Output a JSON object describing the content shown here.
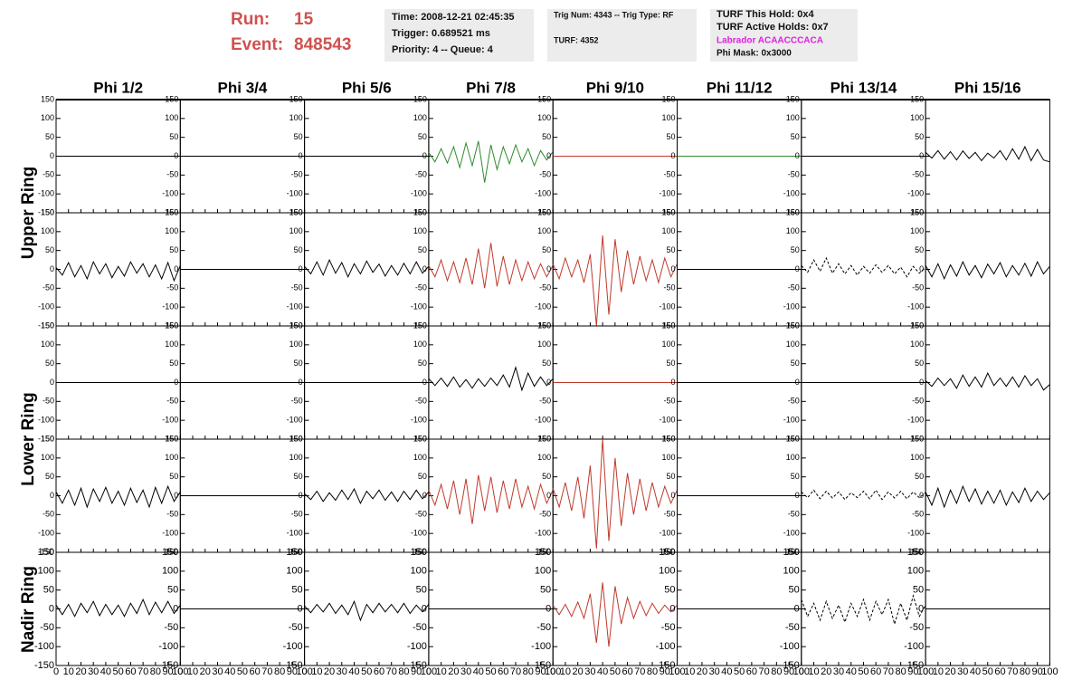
{
  "header": {
    "run_label": "Run:",
    "run": "15",
    "event_label": "Event:",
    "event": "848543",
    "box1": [
      "Time: 2008-12-21 02:45:35",
      "Trigger: 0.689521 ms",
      "Priority: 4 -- Queue: 4"
    ],
    "box2": [
      "Trig Num: 4343 -- Trig Type: RF",
      "TURF: 4352"
    ],
    "box3": [
      "TURF This Hold: 0x4",
      "TURF Active Holds: 0x7",
      "Labrador ACAACCCACA",
      "Phi Mask: 0x3000"
    ]
  },
  "chart_data": {
    "type": "line-grid",
    "columns": [
      "Phi 1/2",
      "Phi 3/4",
      "Phi 5/6",
      "Phi 7/8",
      "Phi 9/10",
      "Phi 11/12",
      "Phi 13/14",
      "Phi 15/16"
    ],
    "row_labels": [
      "Upper Ring",
      "Lower Ring",
      "Nadir Ring"
    ],
    "xlim": [
      0,
      100
    ],
    "xticks": [
      0,
      10,
      20,
      30,
      40,
      50,
      60,
      70,
      80,
      90,
      100
    ],
    "ylim": [
      -150,
      150
    ],
    "yticks": [
      -150,
      -100,
      -50,
      0,
      50,
      100,
      150
    ],
    "x": [
      0,
      5,
      10,
      15,
      20,
      25,
      30,
      35,
      40,
      45,
      50,
      55,
      60,
      65,
      70,
      75,
      80,
      85,
      90,
      95,
      100
    ],
    "panels": [
      [
        {
          "color": "#000000",
          "values": [
            0,
            0,
            0,
            0,
            0,
            0,
            0,
            0,
            0,
            0,
            0,
            0,
            0,
            0,
            0,
            0,
            0,
            0,
            0,
            0,
            0
          ]
        },
        {
          "color": "#000000",
          "values": [
            0,
            0,
            0,
            0,
            0,
            0,
            0,
            0,
            0,
            0,
            0,
            0,
            0,
            0,
            0,
            0,
            0,
            0,
            0,
            0,
            0
          ]
        },
        {
          "color": "#000000",
          "values": [
            0,
            0,
            0,
            0,
            0,
            0,
            0,
            0,
            0,
            0,
            0,
            0,
            0,
            0,
            0,
            0,
            0,
            0,
            0,
            0,
            0
          ]
        },
        {
          "color": "#2e8b2e",
          "values": [
            10,
            -15,
            20,
            -18,
            25,
            -30,
            35,
            -25,
            40,
            -70,
            30,
            -35,
            25,
            -20,
            30,
            -15,
            20,
            -25,
            15,
            -10,
            12
          ]
        },
        {
          "color": "#c0392b",
          "values": [
            0,
            0,
            0,
            0,
            0,
            0,
            0,
            0,
            0,
            0,
            0,
            0,
            0,
            0,
            0,
            0,
            0,
            0,
            0,
            0,
            0
          ]
        },
        {
          "color": "#2e8b2e",
          "values": [
            0,
            0,
            0,
            0,
            0,
            0,
            0,
            0,
            0,
            0,
            0,
            0,
            0,
            0,
            0,
            0,
            0,
            0,
            0,
            0,
            0
          ]
        },
        {
          "color": "#000000",
          "values": [
            0,
            0,
            0,
            0,
            0,
            0,
            0,
            0,
            0,
            0,
            0,
            0,
            0,
            0,
            0,
            0,
            0,
            0,
            0,
            0,
            0
          ]
        },
        {
          "color": "#000000",
          "values": [
            10,
            -5,
            15,
            -8,
            12,
            -10,
            14,
            -6,
            10,
            -12,
            8,
            -5,
            15,
            -10,
            20,
            -8,
            25,
            -12,
            18,
            -10,
            -15
          ]
        }
      ],
      [
        {
          "color": "#000000",
          "values": [
            5,
            -15,
            18,
            -20,
            10,
            -25,
            20,
            -12,
            15,
            -22,
            8,
            -18,
            20,
            -10,
            15,
            -20,
            12,
            -25,
            18,
            -30,
            10
          ]
        },
        {
          "color": "#000000",
          "values": [
            0,
            0,
            0,
            0,
            0,
            0,
            0,
            0,
            0,
            0,
            0,
            0,
            0,
            0,
            0,
            0,
            0,
            0,
            0,
            0,
            0
          ]
        },
        {
          "color": "#000000",
          "values": [
            8,
            -12,
            20,
            -15,
            25,
            -10,
            18,
            -20,
            15,
            -12,
            22,
            -8,
            14,
            -18,
            10,
            -15,
            16,
            -12,
            20,
            -10,
            8
          ]
        },
        {
          "color": "#c0392b",
          "values": [
            10,
            -20,
            25,
            -30,
            20,
            -35,
            30,
            -40,
            55,
            -50,
            70,
            -45,
            35,
            -40,
            25,
            -30,
            20,
            -25,
            15,
            -20,
            10
          ]
        },
        {
          "color": "#c0392b",
          "values": [
            15,
            -25,
            30,
            -20,
            25,
            -35,
            40,
            -150,
            90,
            -120,
            80,
            -60,
            50,
            -40,
            35,
            -30,
            25,
            -35,
            30,
            -20,
            15
          ]
        },
        {
          "color": "#000000",
          "values": [
            0,
            0,
            0,
            0,
            0,
            0,
            0,
            0,
            0,
            0,
            0,
            0,
            0,
            0,
            0,
            0,
            0,
            0,
            0,
            0,
            0
          ]
        },
        {
          "color": "#000000",
          "style": "dashed",
          "values": [
            10,
            -8,
            25,
            -5,
            30,
            -10,
            15,
            -12,
            10,
            -15,
            8,
            -10,
            12,
            -8,
            10,
            -12,
            6,
            -20,
            8,
            -10,
            5
          ]
        },
        {
          "color": "#000000",
          "values": [
            10,
            -20,
            15,
            -25,
            12,
            -18,
            20,
            -15,
            10,
            -22,
            14,
            -12,
            18,
            -20,
            10,
            -15,
            16,
            -18,
            20,
            -12,
            8
          ]
        }
      ],
      [
        {
          "color": "#000000",
          "values": [
            0,
            0,
            0,
            0,
            0,
            0,
            0,
            0,
            0,
            0,
            0,
            0,
            0,
            0,
            0,
            0,
            0,
            0,
            0,
            0,
            0
          ]
        },
        {
          "color": "#000000",
          "values": [
            0,
            0,
            0,
            0,
            0,
            0,
            0,
            0,
            0,
            0,
            0,
            0,
            0,
            0,
            0,
            0,
            0,
            0,
            0,
            0,
            0
          ]
        },
        {
          "color": "#000000",
          "values": [
            0,
            0,
            0,
            0,
            0,
            0,
            0,
            0,
            0,
            0,
            0,
            0,
            0,
            0,
            0,
            0,
            0,
            0,
            0,
            0,
            0
          ]
        },
        {
          "color": "#000000",
          "values": [
            10,
            -8,
            12,
            -10,
            15,
            -12,
            8,
            -15,
            10,
            -10,
            12,
            -8,
            20,
            -12,
            40,
            -20,
            25,
            -10,
            15,
            -8,
            10
          ]
        },
        {
          "color": "#c0392b",
          "values": [
            0,
            0,
            0,
            0,
            0,
            0,
            0,
            0,
            0,
            0,
            0,
            0,
            0,
            0,
            0,
            0,
            0,
            0,
            0,
            0,
            0
          ]
        },
        {
          "color": "#000000",
          "values": [
            0,
            0,
            0,
            0,
            0,
            0,
            0,
            0,
            0,
            0,
            0,
            0,
            0,
            0,
            0,
            0,
            0,
            0,
            0,
            0,
            0
          ]
        },
        {
          "color": "#000000",
          "values": [
            0,
            0,
            0,
            0,
            0,
            0,
            0,
            0,
            0,
            0,
            0,
            0,
            0,
            0,
            0,
            0,
            0,
            0,
            0,
            0,
            0
          ]
        },
        {
          "color": "#000000",
          "values": [
            5,
            -10,
            12,
            -8,
            10,
            -15,
            20,
            -10,
            15,
            -12,
            25,
            -8,
            12,
            -10,
            15,
            -12,
            18,
            -8,
            10,
            -20,
            -5
          ]
        }
      ],
      [
        {
          "color": "#000000",
          "values": [
            10,
            -20,
            15,
            -25,
            20,
            -30,
            18,
            -15,
            22,
            -20,
            12,
            -25,
            20,
            -18,
            15,
            -30,
            22,
            -20,
            25,
            -15,
            10
          ]
        },
        {
          "color": "#000000",
          "values": [
            0,
            0,
            0,
            0,
            0,
            0,
            0,
            0,
            0,
            0,
            0,
            0,
            0,
            0,
            0,
            0,
            0,
            0,
            0,
            0,
            0
          ]
        },
        {
          "color": "#000000",
          "values": [
            5,
            -10,
            12,
            -15,
            8,
            -12,
            15,
            -10,
            18,
            -20,
            12,
            -8,
            15,
            -12,
            10,
            -15,
            12,
            -10,
            15,
            -8,
            10
          ]
        },
        {
          "color": "#c0392b",
          "values": [
            15,
            -25,
            30,
            -35,
            40,
            -50,
            45,
            -75,
            55,
            -40,
            50,
            -45,
            40,
            -35,
            45,
            -30,
            25,
            -35,
            30,
            -20,
            15
          ]
        },
        {
          "color": "#c0392b",
          "values": [
            20,
            -30,
            35,
            -40,
            50,
            -60,
            80,
            -140,
            150,
            -120,
            100,
            -80,
            60,
            -50,
            45,
            -40,
            35,
            -30,
            25,
            -20,
            15
          ]
        },
        {
          "color": "#000000",
          "values": [
            0,
            0,
            0,
            0,
            0,
            0,
            0,
            0,
            0,
            0,
            0,
            0,
            0,
            0,
            0,
            0,
            0,
            0,
            0,
            0,
            0
          ]
        },
        {
          "color": "#000000",
          "style": "dashed",
          "values": [
            10,
            -5,
            15,
            -8,
            12,
            -6,
            10,
            -10,
            8,
            -5,
            12,
            -8,
            15,
            -10,
            10,
            -6,
            12,
            -8,
            10,
            -5,
            8
          ]
        },
        {
          "color": "#000000",
          "values": [
            10,
            -25,
            20,
            -30,
            15,
            -20,
            25,
            -15,
            18,
            -22,
            12,
            -20,
            15,
            -25,
            10,
            -18,
            20,
            -15,
            12,
            -10,
            8
          ]
        }
      ],
      [
        {
          "color": "#000000",
          "values": [
            10,
            -15,
            12,
            -20,
            15,
            -10,
            20,
            -18,
            12,
            -15,
            10,
            -20,
            15,
            -12,
            25,
            -15,
            18,
            -10,
            20,
            -12,
            10
          ]
        },
        {
          "color": "#000000",
          "values": [
            0,
            0,
            0,
            0,
            0,
            0,
            0,
            0,
            0,
            0,
            0,
            0,
            0,
            0,
            0,
            0,
            0,
            0,
            0,
            0,
            0
          ]
        },
        {
          "color": "#000000",
          "values": [
            8,
            -10,
            12,
            -8,
            15,
            -12,
            10,
            -15,
            20,
            -30,
            12,
            -10,
            15,
            -8,
            12,
            -10,
            15,
            -12,
            10,
            -8,
            12
          ]
        },
        {
          "color": "#000000",
          "values": [
            0,
            0,
            0,
            0,
            0,
            0,
            0,
            0,
            0,
            0,
            0,
            0,
            0,
            0,
            0,
            0,
            0,
            0,
            0,
            0,
            0
          ]
        },
        {
          "color": "#c0392b",
          "values": [
            10,
            -15,
            12,
            -20,
            18,
            -25,
            40,
            -90,
            70,
            -100,
            60,
            -40,
            30,
            -25,
            20,
            -18,
            15,
            -12,
            10,
            -8,
            10
          ]
        },
        {
          "color": "#000000",
          "values": [
            0,
            0,
            0,
            0,
            0,
            0,
            0,
            0,
            0,
            0,
            0,
            0,
            0,
            0,
            0,
            0,
            0,
            0,
            0,
            0,
            0
          ]
        },
        {
          "color": "#000000",
          "style": "dashed",
          "values": [
            25,
            -20,
            15,
            -30,
            20,
            -25,
            10,
            -35,
            15,
            -20,
            25,
            -30,
            20,
            -15,
            25,
            -40,
            15,
            -30,
            35,
            -20,
            10
          ]
        },
        {
          "color": "#000000",
          "values": [
            0,
            0,
            0,
            0,
            0,
            0,
            0,
            0,
            0,
            0,
            0,
            0,
            0,
            0,
            0,
            0,
            0,
            0,
            0,
            0,
            0
          ]
        }
      ]
    ]
  }
}
